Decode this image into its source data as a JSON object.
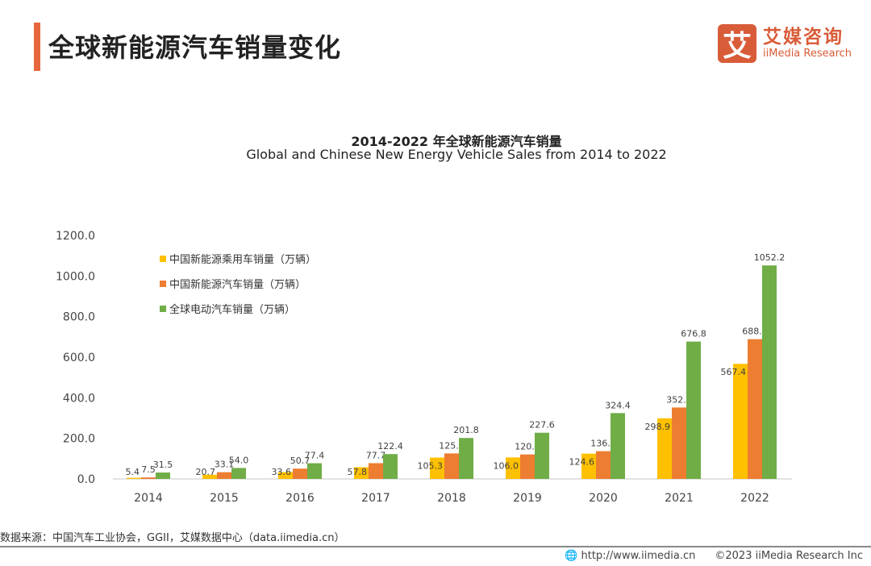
{
  "header": {
    "title": "全球新能源汽车销量变化"
  },
  "logo": {
    "mark": "艾",
    "cn": "艾媒咨询",
    "en": "iiMedia Research"
  },
  "chart_data": {
    "type": "bar",
    "title": "2014-2022 年全球新能源汽车销量",
    "subtitle": "Global and Chinese New Energy Vehicle Sales from 2014 to 2022",
    "categories": [
      "2014",
      "2015",
      "2016",
      "2017",
      "2018",
      "2019",
      "2020",
      "2021",
      "2022"
    ],
    "series": [
      {
        "name": "中国新能源乘用车销量（万辆）",
        "color": "#ffc000",
        "values": [
          5.4,
          20.7,
          33.6,
          57.8,
          105.3,
          106.0,
          124.6,
          298.9,
          567.4
        ]
      },
      {
        "name": "中国新能源汽车销量（万辆）",
        "color": "#ed7d31",
        "values": [
          7.5,
          33.1,
          50.7,
          77.7,
          125.6,
          120.6,
          136.7,
          352.1,
          688.7
        ]
      },
      {
        "name": "全球电动汽车销量（万辆）",
        "color": "#70ad47",
        "values": [
          31.5,
          54.0,
          77.4,
          122.4,
          201.8,
          227.6,
          324.4,
          676.8,
          1052.2
        ]
      }
    ],
    "yticks": [
      "0.0",
      "200.0",
      "400.0",
      "600.0",
      "800.0",
      "1000.0",
      "1200.0"
    ],
    "ylim": [
      0,
      1200
    ],
    "legend": "top-left",
    "grid": false
  },
  "source": "数据来源：中国汽车工业协会，GGII，艾媒数据中心（data.iimedia.cn）",
  "footer": {
    "url": "http://www.iimedia.cn",
    "copyright": "©2023  iiMedia Research  Inc"
  }
}
